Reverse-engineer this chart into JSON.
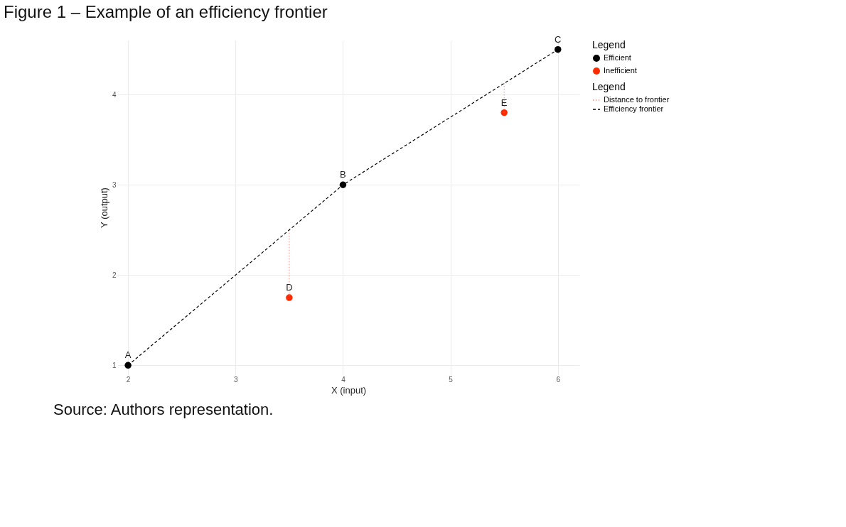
{
  "chart_data": {
    "type": "scatter",
    "title": "Figure 1 – Example of an efficiency frontier",
    "xlabel": "X (input)",
    "ylabel": "Y (output)",
    "legend_title": "Legend",
    "xlim": [
      1.9,
      6.2
    ],
    "ylim": [
      0.9,
      4.6
    ],
    "xticks": [
      2,
      3,
      4,
      5,
      6
    ],
    "yticks": [
      1,
      2,
      3,
      4
    ],
    "grid": true,
    "legend": "right",
    "series": [
      {
        "name": "Distance to frontier",
        "type": "line",
        "line_style": "dotted",
        "color": "#f8766d",
        "x": [
          3.5,
          3.5,
          4.5,
          5.5,
          5.5
        ],
        "values": [
          2.5,
          1.75,
          null,
          4.125,
          3.8
        ]
      },
      {
        "name": "Efficiency frontier",
        "type": "line",
        "line_style": "dashed",
        "color": "#000000",
        "x": [
          2,
          4,
          6
        ],
        "values": [
          1,
          3,
          4.5
        ]
      },
      {
        "name": "Efficient",
        "marker": "circle",
        "color": "#000000",
        "x": [
          2,
          4,
          6
        ],
        "values": [
          1,
          3,
          4.5
        ]
      },
      {
        "name": "Inefficient",
        "marker": "circle",
        "color": "#ff2a00",
        "x": [
          3.5,
          5.5
        ],
        "values": [
          1.75,
          3.8
        ]
      }
    ],
    "annotations": [
      {
        "text": "A",
        "x": 2,
        "y": 1
      },
      {
        "text": "B",
        "x": 4,
        "y": 3
      },
      {
        "text": "C",
        "x": 6,
        "y": 4.5
      },
      {
        "text": "D",
        "x": 3.5,
        "y": 1.75
      },
      {
        "text": "E",
        "x": 5.5,
        "y": 3.8
      },
      "Source: Authors representation."
    ]
  }
}
